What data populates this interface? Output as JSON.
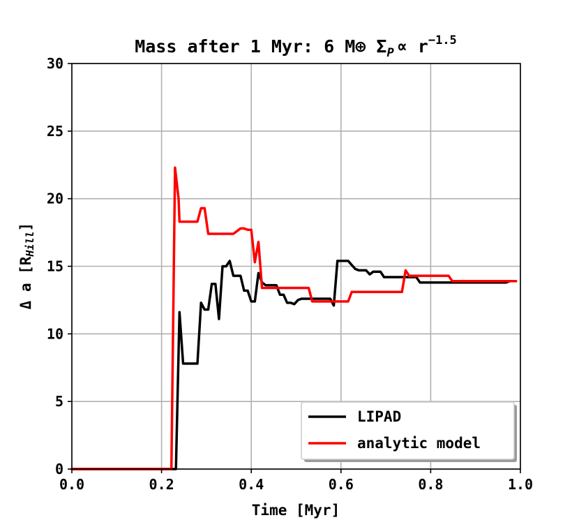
{
  "chart_data": {
    "type": "line",
    "title": "Mass after 1 Myr: 6 M⊕ Σ",
    "title_sub": "P",
    "title_tail": "∝ r",
    "title_exp": "−1.5",
    "xlabel": "Time [Myr]",
    "ylabel_main": "Δ a [R",
    "ylabel_sub": "Hill",
    "ylabel_close": "]",
    "xlim": [
      0.0,
      1.0
    ],
    "ylim": [
      0,
      30
    ],
    "xticks": [
      "0.0",
      "0.2",
      "0.4",
      "0.6",
      "0.8",
      "1.0"
    ],
    "yticks": [
      "0",
      "5",
      "10",
      "15",
      "20",
      "25",
      "30"
    ],
    "grid": true,
    "legend_position": "bottom-right",
    "series": [
      {
        "name": "LIPAD",
        "color": "#000000",
        "x": [
          0.0,
          0.228,
          0.232,
          0.24,
          0.248,
          0.26,
          0.28,
          0.288,
          0.296,
          0.304,
          0.312,
          0.32,
          0.328,
          0.336,
          0.344,
          0.352,
          0.36,
          0.368,
          0.376,
          0.384,
          0.392,
          0.4,
          0.408,
          0.416,
          0.424,
          0.432,
          0.44,
          0.448,
          0.456,
          0.464,
          0.472,
          0.48,
          0.488,
          0.496,
          0.504,
          0.512,
          0.52,
          0.528,
          0.536,
          0.544,
          0.552,
          0.56,
          0.568,
          0.576,
          0.584,
          0.592,
          0.6,
          0.608,
          0.616,
          0.624,
          0.632,
          0.64,
          0.648,
          0.656,
          0.664,
          0.672,
          0.68,
          0.688,
          0.696,
          0.704,
          0.712,
          0.72,
          0.728,
          0.736,
          0.744,
          0.752,
          0.76,
          0.768,
          0.776,
          0.784,
          0.792,
          0.8,
          0.808,
          0.816,
          0.824,
          0.832,
          0.84,
          0.96,
          0.968,
          0.976,
          0.984,
          0.99
        ],
        "y": [
          0,
          0,
          0,
          11.6,
          7.8,
          7.8,
          7.8,
          12.3,
          11.8,
          11.8,
          13.7,
          13.7,
          11.1,
          15.0,
          15.0,
          15.4,
          14.3,
          14.3,
          14.3,
          13.2,
          13.2,
          12.4,
          12.4,
          14.5,
          13.8,
          13.6,
          13.6,
          13.6,
          13.6,
          12.9,
          12.9,
          12.3,
          12.3,
          12.2,
          12.5,
          12.6,
          12.6,
          12.6,
          12.6,
          12.6,
          12.6,
          12.6,
          12.6,
          12.6,
          12.1,
          15.4,
          15.4,
          15.4,
          15.4,
          15.1,
          14.8,
          14.7,
          14.7,
          14.7,
          14.4,
          14.6,
          14.6,
          14.6,
          14.2,
          14.2,
          14.2,
          14.2,
          14.2,
          14.2,
          14.2,
          14.2,
          14.2,
          14.2,
          13.8,
          13.8,
          13.8,
          13.8,
          13.8,
          13.8,
          13.8,
          13.8,
          13.8,
          13.8,
          13.8,
          13.9,
          13.9,
          13.9
        ]
      },
      {
        "name": "analytic model",
        "color": "#ff0000",
        "x": [
          0.0,
          0.218,
          0.222,
          0.23,
          0.238,
          0.24,
          0.28,
          0.288,
          0.296,
          0.304,
          0.312,
          0.352,
          0.36,
          0.376,
          0.384,
          0.392,
          0.4,
          0.408,
          0.416,
          0.424,
          0.432,
          0.44,
          0.448,
          0.528,
          0.536,
          0.544,
          0.552,
          0.616,
          0.624,
          0.64,
          0.648,
          0.736,
          0.744,
          0.752,
          0.76,
          0.768,
          0.776,
          0.84,
          0.848,
          0.92,
          0.928,
          0.99
        ],
        "y": [
          0,
          0,
          0,
          22.3,
          20.0,
          18.3,
          18.3,
          19.3,
          19.3,
          17.4,
          17.4,
          17.4,
          17.4,
          17.8,
          17.8,
          17.7,
          17.7,
          15.3,
          16.8,
          13.4,
          13.4,
          13.4,
          13.4,
          13.4,
          12.4,
          12.4,
          12.4,
          12.4,
          13.1,
          13.1,
          13.1,
          13.1,
          14.7,
          14.3,
          14.3,
          14.3,
          14.3,
          14.3,
          13.9,
          13.9,
          13.9,
          13.9
        ]
      }
    ]
  }
}
